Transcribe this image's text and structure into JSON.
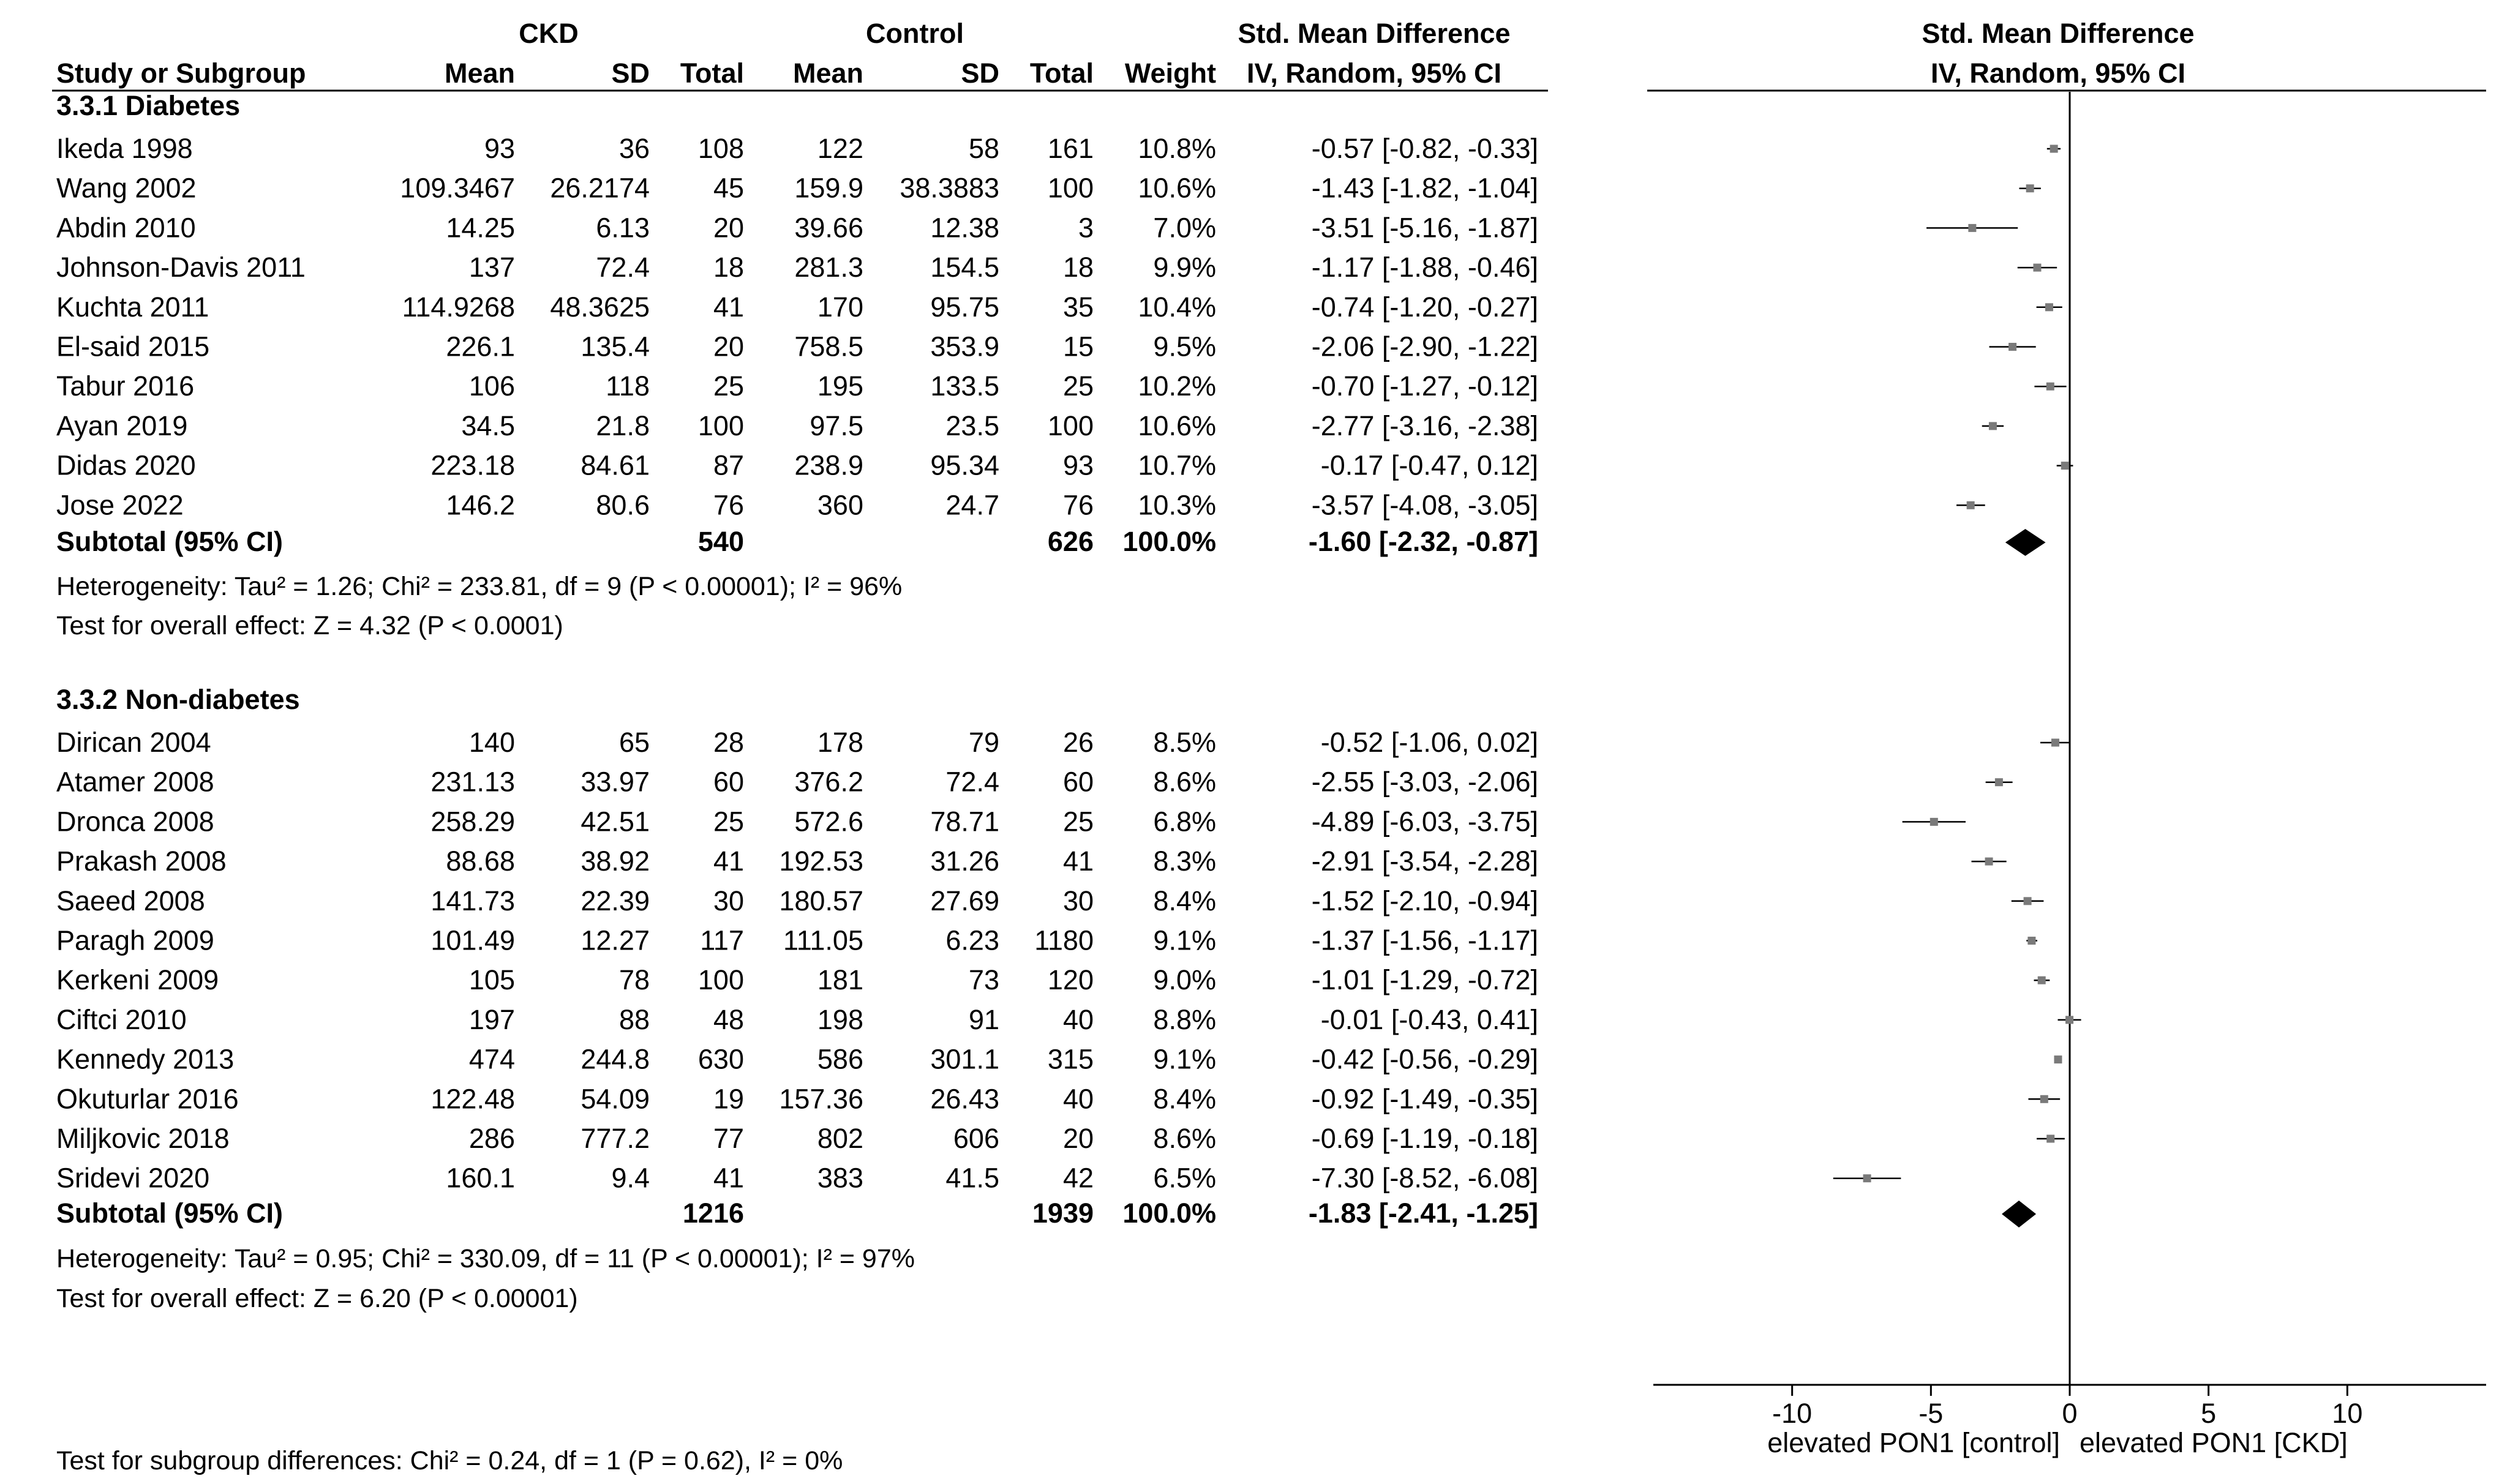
{
  "chart_data": {
    "type": "forest",
    "headers": {
      "group_ckd": "CKD",
      "group_control": "Control",
      "smd_table": "Std. Mean Difference",
      "smd_plot": "Std. Mean Difference",
      "study": "Study or Subgroup",
      "mean_ckd": "Mean",
      "sd_ckd": "SD",
      "total_ckd": "Total",
      "mean_ctrl": "Mean",
      "sd_ctrl": "SD",
      "total_ctrl": "Total",
      "weight": "Weight",
      "method_table": "IV, Random, 95% CI",
      "method_plot": "IV, Random, 95% CI"
    },
    "axis": {
      "min": -15,
      "max": 15,
      "ticks": [
        -10,
        -5,
        0,
        5,
        10
      ],
      "tick_labels": [
        "-10",
        "-5",
        "0",
        "5",
        "10"
      ],
      "label_left": "elevated PON1 [control]",
      "label_right": "elevated PON1 [CKD]"
    },
    "subgroups": [
      {
        "name": "3.3.1 Diabetes",
        "studies": [
          {
            "study": "Ikeda 1998",
            "mean_ckd": "93",
            "sd_ckd": "36",
            "total_ckd": "108",
            "mean_ctrl": "122",
            "sd_ctrl": "58",
            "total_ctrl": "161",
            "weight": "10.8%",
            "ci_text": "-0.57 [-0.82, -0.33]",
            "est": -0.57,
            "lo": -0.82,
            "hi": -0.33
          },
          {
            "study": "Wang 2002",
            "mean_ckd": "109.3467",
            "sd_ckd": "26.2174",
            "total_ckd": "45",
            "mean_ctrl": "159.9",
            "sd_ctrl": "38.3883",
            "total_ctrl": "100",
            "weight": "10.6%",
            "ci_text": "-1.43 [-1.82, -1.04]",
            "est": -1.43,
            "lo": -1.82,
            "hi": -1.04
          },
          {
            "study": "Abdin 2010",
            "mean_ckd": "14.25",
            "sd_ckd": "6.13",
            "total_ckd": "20",
            "mean_ctrl": "39.66",
            "sd_ctrl": "12.38",
            "total_ctrl": "3",
            "weight": "7.0%",
            "ci_text": "-3.51 [-5.16, -1.87]",
            "est": -3.51,
            "lo": -5.16,
            "hi": -1.87
          },
          {
            "study": "Johnson-Davis 2011",
            "mean_ckd": "137",
            "sd_ckd": "72.4",
            "total_ckd": "18",
            "mean_ctrl": "281.3",
            "sd_ctrl": "154.5",
            "total_ctrl": "18",
            "weight": "9.9%",
            "ci_text": "-1.17 [-1.88, -0.46]",
            "est": -1.17,
            "lo": -1.88,
            "hi": -0.46
          },
          {
            "study": "Kuchta 2011",
            "mean_ckd": "114.9268",
            "sd_ckd": "48.3625",
            "total_ckd": "41",
            "mean_ctrl": "170",
            "sd_ctrl": "95.75",
            "total_ctrl": "35",
            "weight": "10.4%",
            "ci_text": "-0.74 [-1.20, -0.27]",
            "est": -0.74,
            "lo": -1.2,
            "hi": -0.27
          },
          {
            "study": "El-said 2015",
            "mean_ckd": "226.1",
            "sd_ckd": "135.4",
            "total_ckd": "20",
            "mean_ctrl": "758.5",
            "sd_ctrl": "353.9",
            "total_ctrl": "15",
            "weight": "9.5%",
            "ci_text": "-2.06 [-2.90, -1.22]",
            "est": -2.06,
            "lo": -2.9,
            "hi": -1.22
          },
          {
            "study": "Tabur 2016",
            "mean_ckd": "106",
            "sd_ckd": "118",
            "total_ckd": "25",
            "mean_ctrl": "195",
            "sd_ctrl": "133.5",
            "total_ctrl": "25",
            "weight": "10.2%",
            "ci_text": "-0.70 [-1.27, -0.12]",
            "est": -0.7,
            "lo": -1.27,
            "hi": -0.12
          },
          {
            "study": "Ayan 2019",
            "mean_ckd": "34.5",
            "sd_ckd": "21.8",
            "total_ckd": "100",
            "mean_ctrl": "97.5",
            "sd_ctrl": "23.5",
            "total_ctrl": "100",
            "weight": "10.6%",
            "ci_text": "-2.77 [-3.16, -2.38]",
            "est": -2.77,
            "lo": -3.16,
            "hi": -2.38
          },
          {
            "study": "Didas 2020",
            "mean_ckd": "223.18",
            "sd_ckd": "84.61",
            "total_ckd": "87",
            "mean_ctrl": "238.9",
            "sd_ctrl": "95.34",
            "total_ctrl": "93",
            "weight": "10.7%",
            "ci_text": "-0.17 [-0.47, 0.12]",
            "est": -0.17,
            "lo": -0.47,
            "hi": 0.12
          },
          {
            "study": "Jose 2022",
            "mean_ckd": "146.2",
            "sd_ckd": "80.6",
            "total_ckd": "76",
            "mean_ctrl": "360",
            "sd_ctrl": "24.7",
            "total_ctrl": "76",
            "weight": "10.3%",
            "ci_text": "-3.57 [-4.08, -3.05]",
            "est": -3.57,
            "lo": -4.08,
            "hi": -3.05
          }
        ],
        "subtotal": {
          "label": "Subtotal (95% CI)",
          "total_ckd": "540",
          "total_ctrl": "626",
          "weight": "100.0%",
          "ci_text": "-1.60 [-2.32, -0.87]",
          "est": -1.6,
          "lo": -2.32,
          "hi": -0.87
        },
        "heterogeneity": "Heterogeneity: Tau² = 1.26; Chi² = 233.81, df = 9 (P < 0.00001); I² = 96%",
        "overall": "Test for overall effect: Z = 4.32 (P < 0.0001)"
      },
      {
        "name": "3.3.2 Non-diabetes",
        "studies": [
          {
            "study": "Dirican 2004",
            "mean_ckd": "140",
            "sd_ckd": "65",
            "total_ckd": "28",
            "mean_ctrl": "178",
            "sd_ctrl": "79",
            "total_ctrl": "26",
            "weight": "8.5%",
            "ci_text": "-0.52 [-1.06, 0.02]",
            "est": -0.52,
            "lo": -1.06,
            "hi": 0.02
          },
          {
            "study": "Atamer 2008",
            "mean_ckd": "231.13",
            "sd_ckd": "33.97",
            "total_ckd": "60",
            "mean_ctrl": "376.2",
            "sd_ctrl": "72.4",
            "total_ctrl": "60",
            "weight": "8.6%",
            "ci_text": "-2.55 [-3.03, -2.06]",
            "est": -2.55,
            "lo": -3.03,
            "hi": -2.06
          },
          {
            "study": "Dronca 2008",
            "mean_ckd": "258.29",
            "sd_ckd": "42.51",
            "total_ckd": "25",
            "mean_ctrl": "572.6",
            "sd_ctrl": "78.71",
            "total_ctrl": "25",
            "weight": "6.8%",
            "ci_text": "-4.89 [-6.03, -3.75]",
            "est": -4.89,
            "lo": -6.03,
            "hi": -3.75
          },
          {
            "study": "Prakash 2008",
            "mean_ckd": "88.68",
            "sd_ckd": "38.92",
            "total_ckd": "41",
            "mean_ctrl": "192.53",
            "sd_ctrl": "31.26",
            "total_ctrl": "41",
            "weight": "8.3%",
            "ci_text": "-2.91 [-3.54, -2.28]",
            "est": -2.91,
            "lo": -3.54,
            "hi": -2.28
          },
          {
            "study": "Saeed 2008",
            "mean_ckd": "141.73",
            "sd_ckd": "22.39",
            "total_ckd": "30",
            "mean_ctrl": "180.57",
            "sd_ctrl": "27.69",
            "total_ctrl": "30",
            "weight": "8.4%",
            "ci_text": "-1.52 [-2.10, -0.94]",
            "est": -1.52,
            "lo": -2.1,
            "hi": -0.94
          },
          {
            "study": "Paragh 2009",
            "mean_ckd": "101.49",
            "sd_ckd": "12.27",
            "total_ckd": "117",
            "mean_ctrl": "111.05",
            "sd_ctrl": "6.23",
            "total_ctrl": "1180",
            "weight": "9.1%",
            "ci_text": "-1.37 [-1.56, -1.17]",
            "est": -1.37,
            "lo": -1.56,
            "hi": -1.17
          },
          {
            "study": "Kerkeni 2009",
            "mean_ckd": "105",
            "sd_ckd": "78",
            "total_ckd": "100",
            "mean_ctrl": "181",
            "sd_ctrl": "73",
            "total_ctrl": "120",
            "weight": "9.0%",
            "ci_text": "-1.01 [-1.29, -0.72]",
            "est": -1.01,
            "lo": -1.29,
            "hi": -0.72
          },
          {
            "study": "Ciftci 2010",
            "mean_ckd": "197",
            "sd_ckd": "88",
            "total_ckd": "48",
            "mean_ctrl": "198",
            "sd_ctrl": "91",
            "total_ctrl": "40",
            "weight": "8.8%",
            "ci_text": "-0.01 [-0.43, 0.41]",
            "est": -0.01,
            "lo": -0.43,
            "hi": 0.41
          },
          {
            "study": "Kennedy 2013",
            "mean_ckd": "474",
            "sd_ckd": "244.8",
            "total_ckd": "630",
            "mean_ctrl": "586",
            "sd_ctrl": "301.1",
            "total_ctrl": "315",
            "weight": "9.1%",
            "ci_text": "-0.42 [-0.56, -0.29]",
            "est": -0.42,
            "lo": -0.56,
            "hi": -0.29
          },
          {
            "study": "Okuturlar 2016",
            "mean_ckd": "122.48",
            "sd_ckd": "54.09",
            "total_ckd": "19",
            "mean_ctrl": "157.36",
            "sd_ctrl": "26.43",
            "total_ctrl": "40",
            "weight": "8.4%",
            "ci_text": "-0.92 [-1.49, -0.35]",
            "est": -0.92,
            "lo": -1.49,
            "hi": -0.35
          },
          {
            "study": "Miljkovic 2018",
            "mean_ckd": "286",
            "sd_ckd": "777.2",
            "total_ckd": "77",
            "mean_ctrl": "802",
            "sd_ctrl": "606",
            "total_ctrl": "20",
            "weight": "8.6%",
            "ci_text": "-0.69 [-1.19, -0.18]",
            "est": -0.69,
            "lo": -1.19,
            "hi": -0.18
          },
          {
            "study": "Sridevi 2020",
            "mean_ckd": "160.1",
            "sd_ckd": "9.4",
            "total_ckd": "41",
            "mean_ctrl": "383",
            "sd_ctrl": "41.5",
            "total_ctrl": "42",
            "weight": "6.5%",
            "ci_text": "-7.30 [-8.52, -6.08]",
            "est": -7.3,
            "lo": -8.52,
            "hi": -6.08
          }
        ],
        "subtotal": {
          "label": "Subtotal (95% CI)",
          "total_ckd": "1216",
          "total_ctrl": "1939",
          "weight": "100.0%",
          "ci_text": "-1.83 [-2.41, -1.25]",
          "est": -1.83,
          "lo": -2.41,
          "hi": -1.25
        },
        "heterogeneity": "Heterogeneity: Tau² = 0.95; Chi² = 330.09, df = 11 (P < 0.00001); I² = 97%",
        "overall": "Test for overall effect: Z = 6.20 (P < 0.00001)"
      }
    ],
    "subgroup_test": "Test for subgroup differences: Chi² = 0.24, df = 1 (P = 0.62), I² = 0%"
  }
}
